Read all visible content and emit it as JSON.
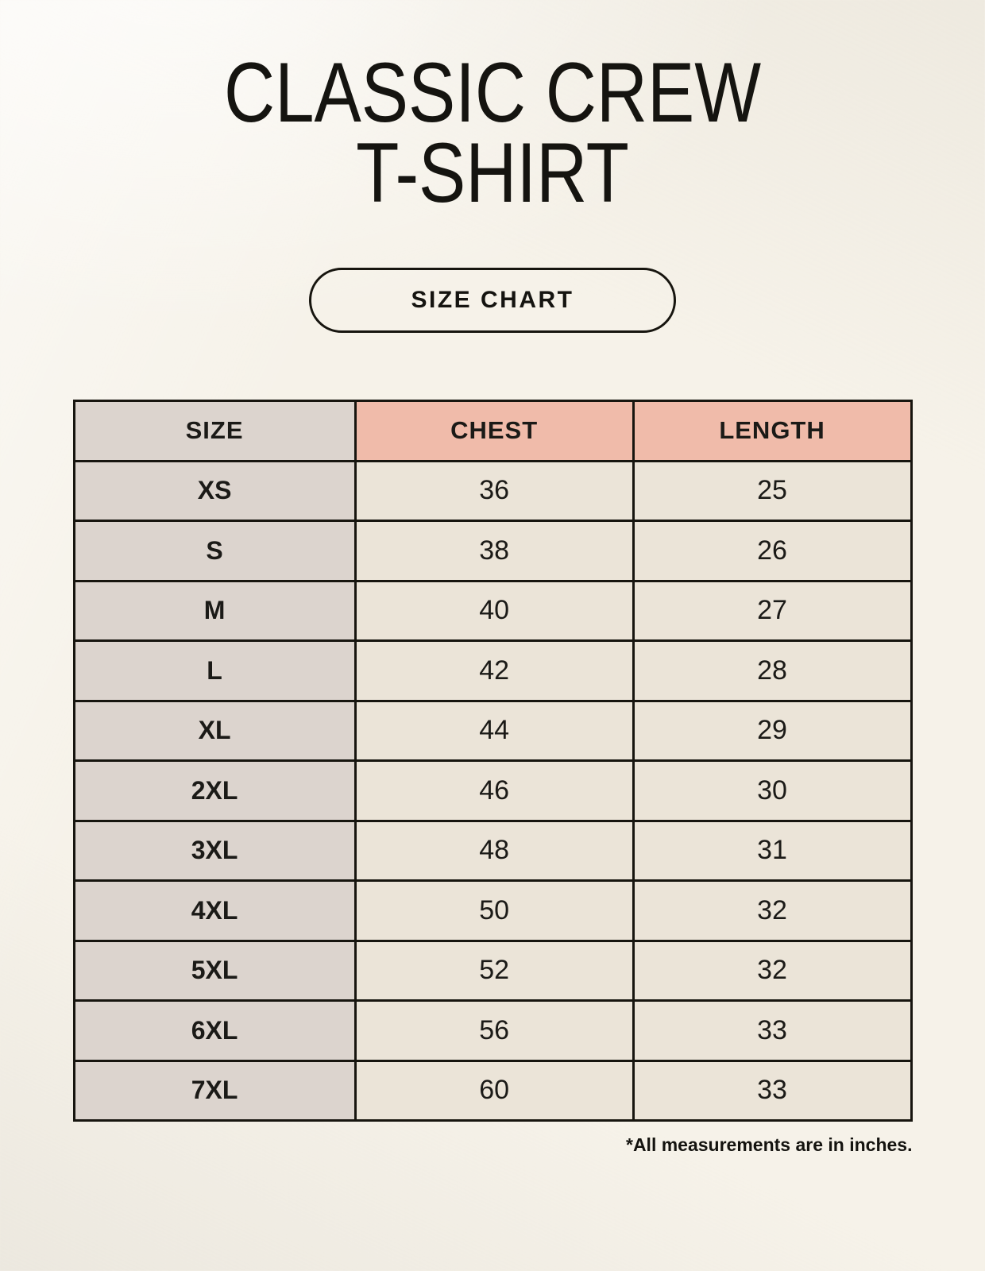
{
  "page": {
    "title_line1": "CLASSIC CREW",
    "title_line2": "T-SHIRT",
    "size_chart_label": "SIZE CHART",
    "footnote": "*All measurements are in inches."
  },
  "chart_data": {
    "type": "table",
    "title": "CLASSIC CREW T-SHIRT",
    "subtitle": "SIZE CHART",
    "columns": [
      "SIZE",
      "CHEST",
      "LENGTH"
    ],
    "rows": [
      [
        "XS",
        36,
        25
      ],
      [
        "S",
        38,
        26
      ],
      [
        "M",
        40,
        27
      ],
      [
        "L",
        42,
        28
      ],
      [
        "XL",
        44,
        29
      ],
      [
        "2XL",
        46,
        30
      ],
      [
        "3XL",
        48,
        31
      ],
      [
        "4XL",
        50,
        32
      ],
      [
        "5XL",
        52,
        32
      ],
      [
        "6XL",
        56,
        33
      ],
      [
        "7XL",
        60,
        33
      ]
    ],
    "note": "*All measurements are in inches.",
    "units": "inches"
  },
  "colors": {
    "bg": "#f6f2e9",
    "ink": "#1b1a17",
    "border": "#17150f",
    "salmon": "#f0bbaa",
    "graycol": "#dcd4ce",
    "cream": "#ebe4d8"
  }
}
